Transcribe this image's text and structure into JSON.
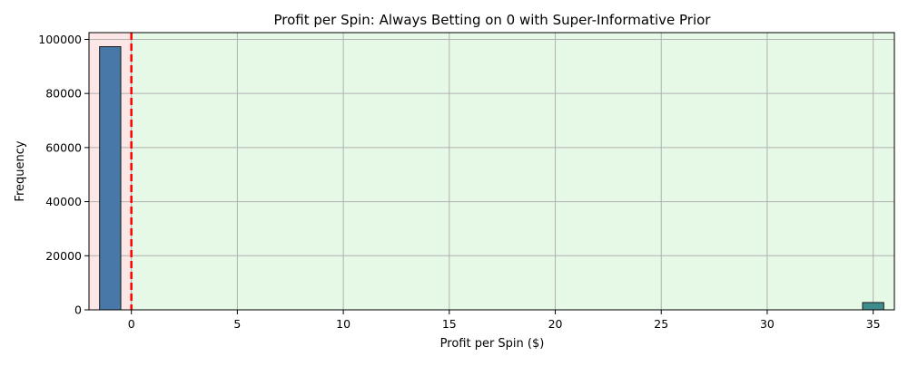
{
  "chart_data": {
    "type": "bar",
    "title": "Profit per Spin: Always Betting on 0 with Super-Informative Prior",
    "xlabel": "Profit per Spin ($)",
    "ylabel": "Frequency",
    "xlim": [
      -2,
      36
    ],
    "ylim": [
      0,
      102500
    ],
    "x_ticks": [
      0,
      5,
      10,
      15,
      20,
      25,
      30,
      35
    ],
    "y_ticks": [
      0,
      20000,
      40000,
      60000,
      80000,
      100000
    ],
    "grid": true,
    "bars": [
      {
        "x_start": -1.5,
        "x_end": -0.5,
        "value": 97300,
        "color": "#4878a8"
      },
      {
        "x_start": 34.5,
        "x_end": 35.5,
        "value": 2700,
        "color": "#3f8c8c"
      }
    ],
    "shaded_regions": [
      {
        "x_start": -2,
        "x_end": 0,
        "color": "#fde6e6"
      },
      {
        "x_start": 0,
        "x_end": 36,
        "color": "#e6f9e6"
      }
    ],
    "reference_line": {
      "x": 0,
      "color": "#ff0000",
      "style": "dashed"
    }
  }
}
